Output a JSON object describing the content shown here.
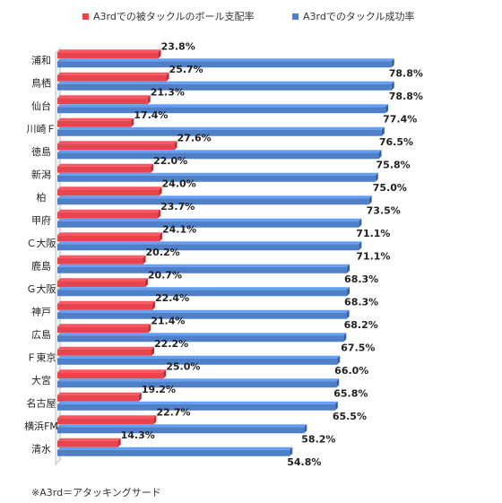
{
  "chart_data": {
    "type": "bar",
    "orientation": "horizontal",
    "title": "",
    "xlabel": "",
    "ylabel": "",
    "xlim": [
      0,
      100
    ],
    "grid": false,
    "legend_position": "top",
    "categories": [
      "浦和",
      "鳥栖",
      "仙台",
      "川崎Ｆ",
      "徳島",
      "新潟",
      "柏",
      "甲府",
      "Ｃ大阪",
      "鹿島",
      "Ｇ大阪",
      "神戸",
      "広島",
      "Ｆ東京",
      "大宮",
      "名古屋",
      "横浜FM",
      "清水"
    ],
    "series": [
      {
        "name": "A3rdでの被タックルのボール支配率",
        "color": "#e8444d",
        "values": [
          23.8,
          25.7,
          21.3,
          17.4,
          27.6,
          22.0,
          24.0,
          23.7,
          24.1,
          20.2,
          20.7,
          22.4,
          21.4,
          22.2,
          25.0,
          19.2,
          22.7,
          14.3
        ],
        "labels": [
          "23.8%",
          "25.7%",
          "21.3%",
          "17.4%",
          "27.6%",
          "22.0%",
          "24.0%",
          "23.7%",
          "24.1%",
          "20.2%",
          "20.7%",
          "22.4%",
          "21.4%",
          "22.2%",
          "25.0%",
          "19.2%",
          "22.7%",
          "14.3%"
        ]
      },
      {
        "name": "A3rdでのタックル成功率",
        "color": "#4f7fc6",
        "values": [
          78.8,
          78.8,
          77.4,
          76.5,
          75.8,
          75.0,
          73.5,
          71.1,
          71.1,
          68.3,
          68.3,
          68.2,
          67.5,
          66.0,
          65.8,
          65.5,
          58.2,
          54.8
        ],
        "labels": [
          "78.8%",
          "78.8%",
          "77.4%",
          "76.5%",
          "75.8%",
          "75.0%",
          "73.5%",
          "71.1%",
          "71.1%",
          "68.3%",
          "68.3%",
          "68.2%",
          "67.5%",
          "66.0%",
          "65.8%",
          "65.5%",
          "58.2%",
          "54.8%"
        ]
      }
    ]
  },
  "footnote": "※A3rd＝アタッキングサード"
}
